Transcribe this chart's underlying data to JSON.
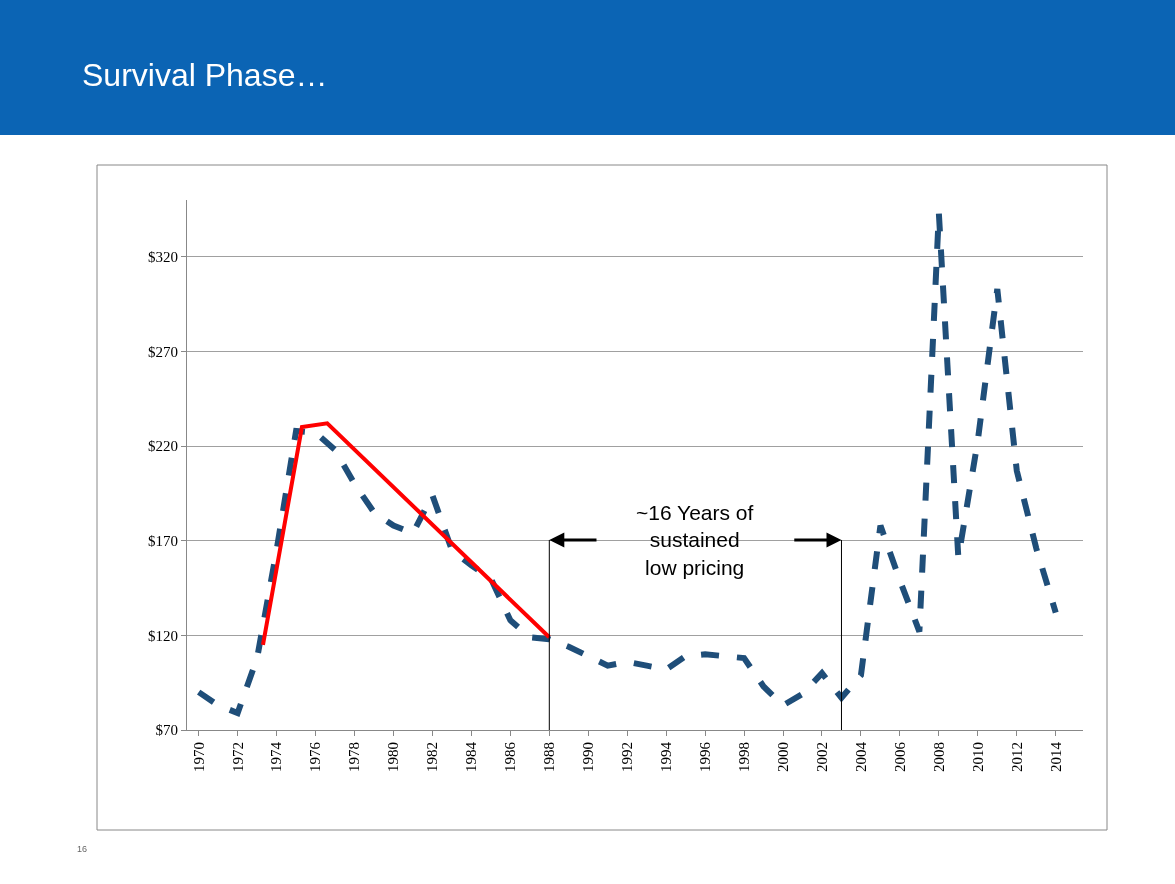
{
  "chart_data": {
    "type": "line",
    "title": "Survival Phase…",
    "x": [
      1970,
      1971,
      1972,
      1973,
      1974,
      1975,
      1976,
      1977,
      1978,
      1979,
      1980,
      1981,
      1982,
      1983,
      1984,
      1985,
      1986,
      1987,
      1988,
      1989,
      1990,
      1991,
      1992,
      1993,
      1994,
      1995,
      1996,
      1997,
      1998,
      1999,
      2000,
      2001,
      2002,
      2003,
      2004,
      2005,
      2006,
      2007,
      2008,
      2009,
      2010,
      2011,
      2012,
      2013,
      2014
    ],
    "series": [
      {
        "color": "#1f4e79",
        "line_style": "dashed",
        "values": [
          90,
          83,
          79,
          108,
          165,
          228,
          227,
          218,
          200,
          185,
          178,
          174,
          194,
          165,
          157,
          150,
          128,
          119,
          118,
          114,
          109,
          104,
          106,
          104,
          102,
          109,
          110,
          109,
          108,
          93,
          83,
          89,
          100,
          87,
          99,
          178,
          149,
          122,
          343,
          161,
          223,
          303,
          207,
          166,
          132
        ]
      },
      {
        "color": "#ff0000",
        "line_style": "solid",
        "x": [
          1973.3,
          1975.3,
          1976.6,
          1988
        ],
        "values": [
          115,
          230,
          232,
          119
        ]
      }
    ],
    "xlim": [
      1969.4,
      2015.4
    ],
    "xticks": [
      1970,
      1972,
      1974,
      1976,
      1978,
      1980,
      1982,
      1984,
      1986,
      1988,
      1990,
      1992,
      1994,
      1996,
      1998,
      2000,
      2002,
      2004,
      2006,
      2008,
      2010,
      2012,
      2014
    ],
    "ylim": [
      70,
      350
    ],
    "yticks": [
      {
        "value": 70,
        "label": "$70"
      },
      {
        "value": 120,
        "label": "$120"
      },
      {
        "value": 170,
        "label": "$170"
      },
      {
        "value": 220,
        "label": "$220"
      },
      {
        "value": 270,
        "label": "$270"
      },
      {
        "value": 320,
        "label": "$320"
      }
    ],
    "grid": "y",
    "marker": "none",
    "ref_lines": [
      {
        "axis": "x",
        "value": 1988,
        "color": "#000000"
      },
      {
        "axis": "x",
        "value": 2003,
        "color": "#000000"
      }
    ],
    "annotations": [
      "~16 Years of sustained low pricing",
      "16"
    ]
  }
}
